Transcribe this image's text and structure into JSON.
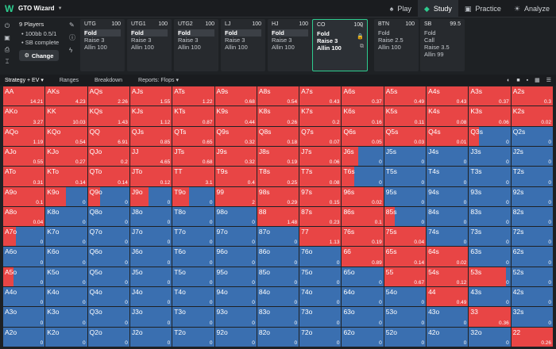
{
  "app": {
    "title": "GTO Wizard",
    "logo": "W"
  },
  "nav": [
    {
      "label": "Play",
      "icon": "♠",
      "active": false
    },
    {
      "label": "Study",
      "icon": "◆",
      "active": true
    },
    {
      "label": "Practice",
      "icon": "▣",
      "active": false
    },
    {
      "label": "Analyze",
      "icon": "☀",
      "active": false
    }
  ],
  "info": {
    "players": "9 Players",
    "stakes": "• 100bb 0.5/1",
    "status": "• SB complete",
    "change_label": "Change"
  },
  "positions": [
    {
      "name": "UTG",
      "stack": "100",
      "actions": [
        "Fold",
        "Raise 3",
        "Allin 100"
      ],
      "selected": 0
    },
    {
      "name": "UTG1",
      "stack": "100",
      "actions": [
        "Fold",
        "Raise 3",
        "Allin 100"
      ],
      "selected": 0
    },
    {
      "name": "UTG2",
      "stack": "100",
      "actions": [
        "Fold",
        "Raise 3",
        "Allin 100"
      ],
      "selected": 0
    },
    {
      "name": "LJ",
      "stack": "100",
      "actions": [
        "Fold",
        "Raise 3",
        "Allin 100"
      ],
      "selected": 0
    },
    {
      "name": "HJ",
      "stack": "100",
      "actions": [
        "Fold",
        "Raise 3",
        "Allin 100"
      ],
      "selected": 0
    },
    {
      "name": "CO",
      "stack": "100",
      "actions": [
        "Fold",
        "Raise 3",
        "Allin 100"
      ],
      "selected": -1,
      "active": true
    },
    {
      "name": "BTN",
      "stack": "100",
      "actions": [
        "Fold",
        "Raise 2.5",
        "Allin 100"
      ],
      "selected": -1
    },
    {
      "name": "SB",
      "stack": "99.5",
      "actions": [
        "Fold",
        "Call",
        "Raise 3.5",
        "Allin 99"
      ],
      "selected": -1
    }
  ],
  "tabs": [
    "Strategy + EV",
    "Ranges",
    "Breakdown",
    "Reports: Flops"
  ],
  "colors": {
    "raise": "#e84545",
    "fold": "#3a6fb0",
    "accent": "#2ecc8f"
  },
  "grid": [
    [
      [
        "AA",
        "14.21",
        1
      ],
      [
        "AKs",
        "4.23",
        1
      ],
      [
        "AQs",
        "2.26",
        1
      ],
      [
        "AJs",
        "1.55",
        1
      ],
      [
        "ATs",
        "1.22",
        1
      ],
      [
        "A9s",
        "0.68",
        1
      ],
      [
        "A8s",
        "0.54",
        1
      ],
      [
        "A7s",
        "0.43",
        1
      ],
      [
        "A6s",
        "0.37",
        1
      ],
      [
        "A5s",
        "0.49",
        1
      ],
      [
        "A4s",
        "0.43",
        1
      ],
      [
        "A3s",
        "0.37",
        1
      ],
      [
        "A2s",
        "0.3",
        1
      ]
    ],
    [
      [
        "AKo",
        "3.27",
        1
      ],
      [
        "KK",
        "10.03",
        1
      ],
      [
        "KQs",
        "1.43",
        1
      ],
      [
        "KJs",
        "1.12",
        1
      ],
      [
        "KTs",
        "0.87",
        1
      ],
      [
        "K9s",
        "0.44",
        1
      ],
      [
        "K8s",
        "0.26",
        1
      ],
      [
        "K7s",
        "0.2",
        1
      ],
      [
        "K6s",
        "0.16",
        1
      ],
      [
        "K5s",
        "0.11",
        1
      ],
      [
        "K4s",
        "0.08",
        1
      ],
      [
        "K3s",
        "0.06",
        1
      ],
      [
        "K2s",
        "0.02",
        1
      ]
    ],
    [
      [
        "AQo",
        "1.19",
        1
      ],
      [
        "KQo",
        "0.54",
        1
      ],
      [
        "QQ",
        "6.91",
        1
      ],
      [
        "QJs",
        "0.85",
        1
      ],
      [
        "QTs",
        "0.65",
        1
      ],
      [
        "Q9s",
        "0.32",
        1
      ],
      [
        "Q8s",
        "0.18",
        1
      ],
      [
        "Q7s",
        "0.07",
        1
      ],
      [
        "Q6s",
        "0.05",
        1
      ],
      [
        "Q5s",
        "0.03",
        1
      ],
      [
        "Q4s",
        "0.01",
        1
      ],
      [
        "Q3s",
        "0",
        0.25
      ],
      [
        "Q2s",
        "0",
        0
      ]
    ],
    [
      [
        "AJo",
        "0.55",
        1
      ],
      [
        "KJo",
        "0.27",
        1
      ],
      [
        "QJo",
        "0.2",
        1
      ],
      [
        "JJ",
        "4.65",
        1
      ],
      [
        "JTs",
        "0.68",
        1
      ],
      [
        "J9s",
        "0.32",
        1
      ],
      [
        "J8s",
        "0.19",
        1
      ],
      [
        "J7s",
        "0.06",
        1
      ],
      [
        "J6s",
        "0",
        0.4
      ],
      [
        "J5s",
        "0",
        0
      ],
      [
        "J4s",
        "0",
        0
      ],
      [
        "J3s",
        "0",
        0
      ],
      [
        "J2s",
        "0",
        0
      ]
    ],
    [
      [
        "ATo",
        "0.31",
        1
      ],
      [
        "KTo",
        "0.14",
        1
      ],
      [
        "QTo",
        "0.14",
        1
      ],
      [
        "JTo",
        "0.12",
        1
      ],
      [
        "TT",
        "3.1",
        1
      ],
      [
        "T9s",
        "0.4",
        1
      ],
      [
        "T8s",
        "0.25",
        1
      ],
      [
        "T7s",
        "0.08",
        1
      ],
      [
        "T6s",
        "0",
        0.3
      ],
      [
        "T5s",
        "0",
        0
      ],
      [
        "T4s",
        "0",
        0
      ],
      [
        "T3s",
        "0",
        0
      ],
      [
        "T2s",
        "0",
        0
      ]
    ],
    [
      [
        "A9o",
        "0.1",
        1
      ],
      [
        "K9o",
        "0",
        0.5
      ],
      [
        "Q9o",
        "0",
        0.3
      ],
      [
        "J9o",
        "0",
        0.45
      ],
      [
        "T9o",
        "0",
        0.4
      ],
      [
        "99",
        "2",
        1
      ],
      [
        "98s",
        "0.29",
        1
      ],
      [
        "97s",
        "0.15",
        1
      ],
      [
        "96s",
        "0.02",
        1
      ],
      [
        "95s",
        "0",
        0
      ],
      [
        "94s",
        "0",
        0
      ],
      [
        "93s",
        "0",
        0
      ],
      [
        "92s",
        "0",
        0
      ]
    ],
    [
      [
        "A8o",
        "0.04",
        1
      ],
      [
        "K8o",
        "0",
        0
      ],
      [
        "Q8o",
        "0",
        0
      ],
      [
        "J8o",
        "0",
        0
      ],
      [
        "T8o",
        "0",
        0
      ],
      [
        "98o",
        "0",
        0
      ],
      [
        "88",
        "1.48",
        1
      ],
      [
        "87s",
        "0.23",
        1
      ],
      [
        "86s",
        "0.1",
        1
      ],
      [
        "85s",
        "0",
        0.25
      ],
      [
        "84s",
        "0",
        0
      ],
      [
        "83s",
        "0",
        0
      ],
      [
        "82s",
        "0",
        0
      ]
    ],
    [
      [
        "A7o",
        "0",
        0.3
      ],
      [
        "K7o",
        "0",
        0
      ],
      [
        "Q7o",
        "0",
        0
      ],
      [
        "J7o",
        "0",
        0
      ],
      [
        "T7o",
        "0",
        0
      ],
      [
        "97o",
        "0",
        0
      ],
      [
        "87o",
        "0",
        0
      ],
      [
        "77",
        "1.13",
        1
      ],
      [
        "76s",
        "0.19",
        1
      ],
      [
        "75s",
        "0.04",
        1
      ],
      [
        "74s",
        "0",
        0
      ],
      [
        "73s",
        "0",
        0
      ],
      [
        "72s",
        "0",
        0
      ]
    ],
    [
      [
        "A6o",
        "0",
        0
      ],
      [
        "K6o",
        "0",
        0
      ],
      [
        "Q6o",
        "0",
        0
      ],
      [
        "J6o",
        "0",
        0
      ],
      [
        "T6o",
        "0",
        0
      ],
      [
        "96o",
        "0",
        0
      ],
      [
        "86o",
        "0",
        0
      ],
      [
        "76o",
        "0",
        0
      ],
      [
        "66",
        "0.89",
        1
      ],
      [
        "65s",
        "0.14",
        1
      ],
      [
        "64s",
        "0.02",
        1
      ],
      [
        "63s",
        "0",
        0
      ],
      [
        "62s",
        "0",
        0
      ]
    ],
    [
      [
        "A5o",
        "0",
        0.25
      ],
      [
        "K5o",
        "0",
        0
      ],
      [
        "Q5o",
        "0",
        0
      ],
      [
        "J5o",
        "0",
        0
      ],
      [
        "T5o",
        "0",
        0
      ],
      [
        "95o",
        "0",
        0
      ],
      [
        "85o",
        "0",
        0
      ],
      [
        "75o",
        "0",
        0
      ],
      [
        "65o",
        "0",
        0
      ],
      [
        "55",
        "0.67",
        1
      ],
      [
        "54s",
        "0.12",
        1
      ],
      [
        "53s",
        "0",
        0.9
      ],
      [
        "52s",
        "0",
        0
      ]
    ],
    [
      [
        "A4o",
        "0",
        0
      ],
      [
        "K4o",
        "0",
        0
      ],
      [
        "Q4o",
        "0",
        0
      ],
      [
        "J4o",
        "0",
        0
      ],
      [
        "T4o",
        "0",
        0
      ],
      [
        "94o",
        "0",
        0
      ],
      [
        "84o",
        "0",
        0
      ],
      [
        "74o",
        "0",
        0
      ],
      [
        "64o",
        "0",
        0
      ],
      [
        "54o",
        "0",
        0
      ],
      [
        "44",
        "0.49",
        1
      ],
      [
        "43s",
        "0",
        0
      ],
      [
        "42s",
        "0",
        0
      ]
    ],
    [
      [
        "A3o",
        "0",
        0
      ],
      [
        "K3o",
        "0",
        0
      ],
      [
        "Q3o",
        "0",
        0
      ],
      [
        "J3o",
        "0",
        0
      ],
      [
        "T3o",
        "0",
        0
      ],
      [
        "93o",
        "0",
        0
      ],
      [
        "83o",
        "0",
        0
      ],
      [
        "73o",
        "0",
        0
      ],
      [
        "63o",
        "0",
        0
      ],
      [
        "53o",
        "0",
        0
      ],
      [
        "43o",
        "0",
        0
      ],
      [
        "33",
        "0.36",
        1
      ],
      [
        "32s",
        "0",
        0
      ]
    ],
    [
      [
        "A2o",
        "0",
        0
      ],
      [
        "K2o",
        "0",
        0
      ],
      [
        "Q2o",
        "0",
        0
      ],
      [
        "J2o",
        "0",
        0
      ],
      [
        "T2o",
        "0",
        0
      ],
      [
        "92o",
        "0",
        0
      ],
      [
        "82o",
        "0",
        0
      ],
      [
        "72o",
        "0",
        0
      ],
      [
        "62o",
        "0",
        0
      ],
      [
        "52o",
        "0",
        0
      ],
      [
        "42o",
        "0",
        0
      ],
      [
        "32o",
        "0",
        0
      ],
      [
        "22",
        "0.26",
        1
      ]
    ]
  ]
}
